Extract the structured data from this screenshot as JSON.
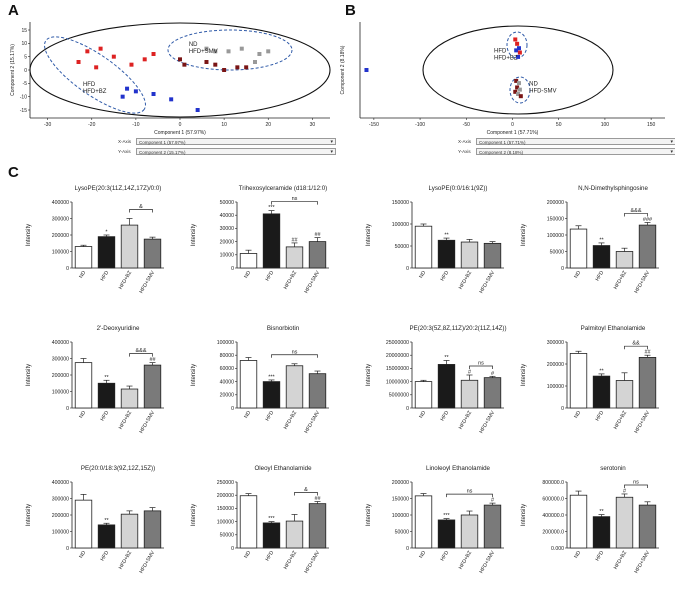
{
  "panels": {
    "A": "A",
    "B": "B",
    "C": "C"
  },
  "score_plots": [
    {
      "id": "A",
      "xlabel": "Component 1 (57.97%)",
      "ylabel": "Component 2 (15.17%)",
      "xticks": [
        -30,
        -20,
        -10,
        0,
        10,
        20,
        30
      ],
      "yticks": [
        15,
        10,
        5,
        0,
        -5,
        -10,
        -15
      ],
      "group_labels": [
        {
          "lines": [
            "ND",
            "HFD+SMV"
          ],
          "x": 2,
          "y": 9
        },
        {
          "lines": [
            "HFD",
            "HFD+BZ"
          ],
          "x": -22,
          "y": -6
        }
      ],
      "controls": [
        {
          "label": "X-Axis",
          "value": "Component 1 (57.97%)"
        },
        {
          "label": "Y-Axis",
          "value": "Component 2 (15.17%)"
        }
      ],
      "points": [
        {
          "x": -21,
          "y": 7,
          "c": "#dd2222"
        },
        {
          "x": -18,
          "y": 8,
          "c": "#dd2222"
        },
        {
          "x": -15,
          "y": 5,
          "c": "#dd2222"
        },
        {
          "x": -19,
          "y": 1,
          "c": "#dd2222"
        },
        {
          "x": -11,
          "y": 2,
          "c": "#dd2222"
        },
        {
          "x": -8,
          "y": 4,
          "c": "#dd2222"
        },
        {
          "x": -23,
          "y": 3,
          "c": "#dd2222"
        },
        {
          "x": -6,
          "y": 6,
          "c": "#dd2222"
        },
        {
          "x": -12,
          "y": -7,
          "c": "#2233cc"
        },
        {
          "x": -10,
          "y": -8,
          "c": "#2233cc"
        },
        {
          "x": -6,
          "y": -9,
          "c": "#2233cc"
        },
        {
          "x": -13,
          "y": -10,
          "c": "#2233cc"
        },
        {
          "x": -2,
          "y": -11,
          "c": "#2233cc"
        },
        {
          "x": 4,
          "y": -15,
          "c": "#2233cc"
        },
        {
          "x": 0,
          "y": 4,
          "c": "#7a1515"
        },
        {
          "x": 1,
          "y": 2,
          "c": "#7a1515"
        },
        {
          "x": 6,
          "y": 3,
          "c": "#7a1515"
        },
        {
          "x": 10,
          "y": 0,
          "c": "#7a1515"
        },
        {
          "x": 13,
          "y": 1,
          "c": "#7a1515"
        },
        {
          "x": 15,
          "y": 1,
          "c": "#7a1515"
        },
        {
          "x": 8,
          "y": 2,
          "c": "#7a1515"
        },
        {
          "x": 6,
          "y": 8,
          "c": "#999999"
        },
        {
          "x": 8,
          "y": 7,
          "c": "#999999"
        },
        {
          "x": 11,
          "y": 7,
          "c": "#999999"
        },
        {
          "x": 14,
          "y": 8,
          "c": "#999999"
        },
        {
          "x": 18,
          "y": 6,
          "c": "#999999"
        },
        {
          "x": 20,
          "y": 7,
          "c": "#999999"
        },
        {
          "x": 17,
          "y": 3,
          "c": "#999999"
        }
      ]
    },
    {
      "id": "B",
      "xlabel": "Component 1 (57.71%)",
      "ylabel": "Component 2 (8.18%)",
      "xticks": [
        -150,
        -100,
        -50,
        0,
        50,
        100,
        150
      ],
      "yticks": [],
      "group_labels": [
        {
          "lines": [
            "HFD",
            "HFD+BZ"
          ],
          "x": -20,
          "y": 8
        },
        {
          "lines": [
            "ND",
            "HFD-SMV"
          ],
          "x": 18,
          "y": -7
        }
      ],
      "controls": [
        {
          "label": "X-Axis",
          "value": "Component 1 (57.71%)"
        },
        {
          "label": "Y-Axis",
          "value": "Component 2 (8.18%)"
        }
      ],
      "points": [
        {
          "x": -158,
          "y": 0,
          "c": "#2233cc"
        },
        {
          "x": 3,
          "y": 14,
          "c": "#dd2222"
        },
        {
          "x": 5,
          "y": 12,
          "c": "#dd2222"
        },
        {
          "x": 7,
          "y": 10,
          "c": "#2233cc"
        },
        {
          "x": 4,
          "y": 9,
          "c": "#2233cc"
        },
        {
          "x": 8,
          "y": 8,
          "c": "#dd2222"
        },
        {
          "x": 6,
          "y": 6,
          "c": "#2233cc"
        },
        {
          "x": 4,
          "y": -5,
          "c": "#7a1515"
        },
        {
          "x": 7,
          "y": -6,
          "c": "#999999"
        },
        {
          "x": 5,
          "y": -8,
          "c": "#7a1515"
        },
        {
          "x": 8,
          "y": -9,
          "c": "#999999"
        },
        {
          "x": 3,
          "y": -10,
          "c": "#7a1515"
        },
        {
          "x": 6,
          "y": -11,
          "c": "#999999"
        },
        {
          "x": 9,
          "y": -12,
          "c": "#7a1515"
        }
      ]
    }
  ],
  "chart_data": [
    {
      "type": "bar",
      "title": "LysoPE(20:3(11Z,14Z,17Z)/0:0)",
      "categories": [
        "ND",
        "HFD",
        "HFD+BZ",
        "HFD+SMV"
      ],
      "values": [
        130000,
        190000,
        260000,
        175000
      ],
      "errors": [
        8000,
        10000,
        40000,
        12000
      ],
      "ylim": [
        0,
        400000
      ],
      "yticks": [
        "0",
        "100000",
        "200000",
        "300000",
        "400000"
      ],
      "ylabel": "Intensity",
      "stars": [
        "",
        "*",
        "",
        ""
      ],
      "bracket": {
        "from": 2,
        "to": 3,
        "label": "&"
      }
    },
    {
      "type": "bar",
      "title": "Trihexosylceramide (d18:1/12:0)",
      "categories": [
        "ND",
        "HFD",
        "HFD+BZ",
        "HFD+SMV"
      ],
      "values": [
        11000,
        41000,
        16000,
        20000
      ],
      "errors": [
        2500,
        2500,
        3000,
        3000
      ],
      "ylim": [
        0,
        50000
      ],
      "yticks": [
        "0",
        "10000",
        "20000",
        "30000",
        "40000",
        "50000"
      ],
      "ylabel": "Intensity",
      "stars": [
        "",
        "***",
        "##",
        "##"
      ],
      "bracket": {
        "from": 1,
        "to": 3,
        "label": "ns"
      }
    },
    {
      "type": "bar",
      "title": "LysoPE(0:0/16:1(9Z))",
      "categories": [
        "ND",
        "HFD",
        "HFD+BZ",
        "HFD+SMV"
      ],
      "values": [
        95000,
        63000,
        59000,
        56000
      ],
      "errors": [
        5000,
        5000,
        6000,
        4000
      ],
      "ylim": [
        0,
        150000
      ],
      "yticks": [
        "0",
        "50000",
        "100000",
        "150000"
      ],
      "ylabel": "Intensity",
      "stars": [
        "",
        "**",
        "",
        ""
      ],
      "bracket": null
    },
    {
      "type": "bar",
      "title": "N,N-Dimethylsphingosine",
      "categories": [
        "ND",
        "HFD",
        "HFD+BZ",
        "HFD+SMV"
      ],
      "values": [
        118000,
        68000,
        50000,
        130000
      ],
      "errors": [
        10000,
        8000,
        10000,
        8000
      ],
      "ylim": [
        0,
        200000
      ],
      "yticks": [
        "0",
        "50000",
        "100000",
        "150000",
        "200000"
      ],
      "ylabel": "Intensity",
      "stars": [
        "",
        "**",
        "",
        "###"
      ],
      "bracket": {
        "from": 2,
        "to": 3,
        "label": "&&&"
      }
    },
    {
      "type": "bar",
      "title": "2'-Deoxyuridine",
      "categories": [
        "ND",
        "HFD",
        "HFD+BZ",
        "HFD+SMV"
      ],
      "values": [
        275000,
        150000,
        115000,
        260000
      ],
      "errors": [
        25000,
        18000,
        18000,
        15000
      ],
      "ylim": [
        0,
        400000
      ],
      "yticks": [
        "0",
        "100000",
        "200000",
        "300000",
        "400000"
      ],
      "ylabel": "Intensity",
      "stars": [
        "",
        "**",
        "",
        "##"
      ],
      "bracket": {
        "from": 2,
        "to": 3,
        "label": "&&&"
      }
    },
    {
      "type": "bar",
      "title": "Bisnorbiotin",
      "categories": [
        "ND",
        "HFD",
        "HFD+BZ",
        "HFD+SMV"
      ],
      "values": [
        72000,
        40000,
        64000,
        52000
      ],
      "errors": [
        4500,
        2500,
        3000,
        4000
      ],
      "ylim": [
        0,
        100000
      ],
      "yticks": [
        "0",
        "20000",
        "40000",
        "60000",
        "80000",
        "100000"
      ],
      "ylabel": "Intensity",
      "stars": [
        "",
        "***",
        "",
        ""
      ],
      "bracket": {
        "from": 1,
        "to": 3,
        "label": "ns"
      }
    },
    {
      "type": "bar",
      "title": "PE(20:3(5Z,8Z,11Z)/20:2(11Z,14Z))",
      "categories": [
        "ND",
        "HFD",
        "HFD+BZ",
        "HFD+SMV"
      ],
      "values": [
        10000000,
        16500000,
        10500000,
        11500000
      ],
      "errors": [
        500000,
        1500000,
        2000000,
        500000
      ],
      "ylim": [
        0,
        25000000
      ],
      "yticks": [
        "0",
        "5000000",
        "10000000",
        "15000000",
        "20000000",
        "25000000"
      ],
      "ylabel": "Intensity",
      "stars": [
        "",
        "**",
        "#",
        "#"
      ],
      "bracket": {
        "from": 2,
        "to": 3,
        "label": "ns"
      }
    },
    {
      "type": "bar",
      "title": "Palmitoyl Ethanolamide",
      "categories": [
        "ND",
        "HFD",
        "HFD+BZ",
        "HFD+SMV"
      ],
      "values": [
        248000,
        145000,
        125000,
        230000
      ],
      "errors": [
        10000,
        10000,
        35000,
        10000
      ],
      "ylim": [
        0,
        300000
      ],
      "yticks": [
        "0",
        "100000",
        "200000",
        "300000"
      ],
      "ylabel": "Intensity",
      "stars": [
        "",
        "**",
        "",
        "##"
      ],
      "bracket": {
        "from": 2,
        "to": 3,
        "label": "&&"
      }
    },
    {
      "type": "bar",
      "title": "PE(20:0/18:3(9Z,12Z,15Z))",
      "categories": [
        "ND",
        "HFD",
        "HFD+BZ",
        "HFD+SMV"
      ],
      "values": [
        290000,
        140000,
        205000,
        225000
      ],
      "errors": [
        35000,
        10000,
        20000,
        20000
      ],
      "ylim": [
        0,
        400000
      ],
      "yticks": [
        "0",
        "100000",
        "200000",
        "300000",
        "400000"
      ],
      "ylabel": "Intensity",
      "stars": [
        "",
        "**",
        "",
        ""
      ],
      "bracket": null
    },
    {
      "type": "bar",
      "title": "Oleoyl Ethanolamide",
      "categories": [
        "ND",
        "HFD",
        "HFD+BZ",
        "HFD+SMV"
      ],
      "values": [
        198000,
        95000,
        102000,
        168000
      ],
      "errors": [
        8000,
        5000,
        25000,
        8000
      ],
      "ylim": [
        0,
        250000
      ],
      "yticks": [
        "0",
        "50000",
        "100000",
        "150000",
        "200000",
        "250000"
      ],
      "ylabel": "Intensity",
      "stars": [
        "",
        "***",
        "",
        "##"
      ],
      "bracket": {
        "from": 2,
        "to": 3,
        "label": "&"
      }
    },
    {
      "type": "bar",
      "title": "Linoleoyl Ethanolamide",
      "categories": [
        "ND",
        "HFD",
        "HFD+BZ",
        "HFD+SMV"
      ],
      "values": [
        158000,
        85000,
        100000,
        130000
      ],
      "errors": [
        7000,
        4000,
        12000,
        6000
      ],
      "ylim": [
        0,
        200000
      ],
      "yticks": [
        "0",
        "50000",
        "100000",
        "150000",
        "200000"
      ],
      "ylabel": "Intensity",
      "stars": [
        "",
        "***",
        "",
        "#"
      ],
      "bracket": {
        "from": 1,
        "to": 3,
        "label": "ns"
      }
    },
    {
      "type": "bar",
      "title": "serotonin",
      "categories": [
        "ND",
        "HFD",
        "HFD+BZ",
        "HFD+SMV"
      ],
      "values": [
        640000,
        380000,
        615000,
        520000
      ],
      "errors": [
        50000,
        25000,
        40000,
        40000
      ],
      "ylim": [
        0,
        800000
      ],
      "yticks": [
        "0.000",
        "200000.0",
        "400000.0",
        "600000.0",
        "800000.0"
      ],
      "ylabel": "Intensity",
      "stars": [
        "",
        "**",
        "#",
        ""
      ],
      "bracket": {
        "from": 2,
        "to": 3,
        "label": "ns"
      }
    }
  ]
}
